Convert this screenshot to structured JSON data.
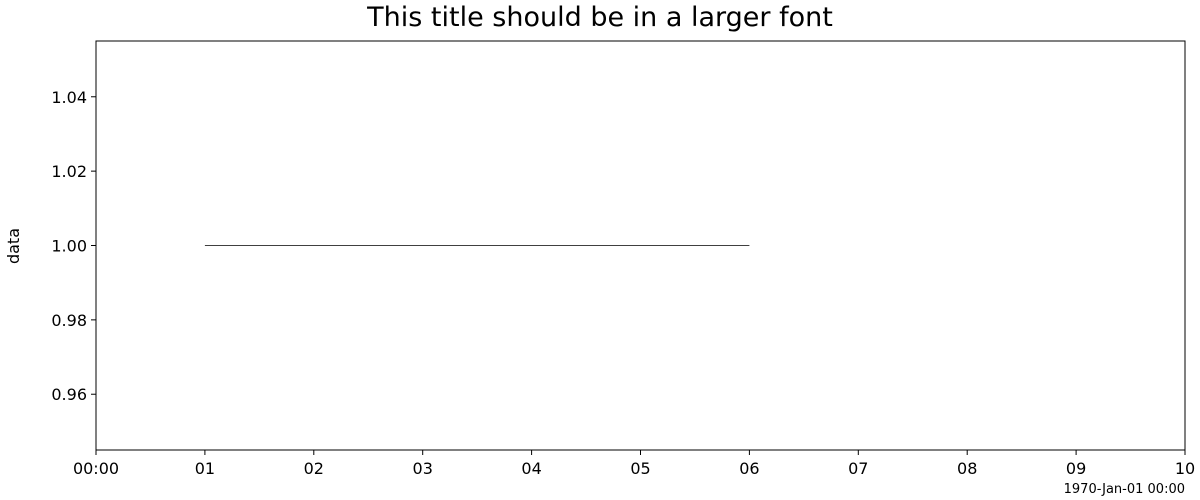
{
  "chart_data": {
    "type": "line",
    "title": "This title should be in a larger font",
    "xlabel": "",
    "ylabel": "data",
    "x_axis": {
      "scale": "time",
      "ticks": [
        0,
        1,
        2,
        3,
        4,
        5,
        6,
        7,
        8,
        9,
        10
      ],
      "tick_labels": [
        "00:00",
        "01",
        "02",
        "03",
        "04",
        "05",
        "06",
        "07",
        "08",
        "09",
        "10"
      ],
      "range": [
        0,
        10
      ],
      "unit": "minutes",
      "offset_label": "1970-Jan-01 00:00"
    },
    "y_axis": {
      "ticks": [
        0.96,
        0.98,
        1.0,
        1.02,
        1.04
      ],
      "tick_labels": [
        "0.96",
        "0.98",
        "1.00",
        "1.02",
        "1.04"
      ],
      "range": [
        0.945,
        1.055
      ]
    },
    "series": [
      {
        "x": [
          1,
          2,
          3,
          4,
          5,
          6
        ],
        "y": [
          1,
          1,
          1,
          1,
          1,
          1
        ],
        "color": "#000000"
      }
    ],
    "grid": false,
    "legend": "none"
  }
}
